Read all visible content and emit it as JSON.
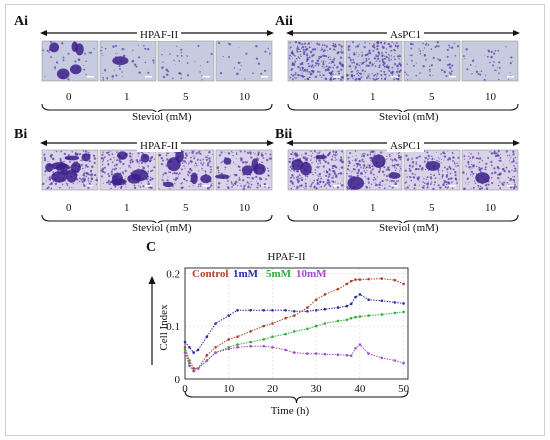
{
  "panels": {
    "Ai": {
      "label": "Ai",
      "cell_line": "HPAF-II",
      "concentrations": [
        "0",
        "1",
        "5",
        "10"
      ],
      "treatment": "Steviol (mM)"
    },
    "Aii": {
      "label": "Aii",
      "cell_line": "AsPC1",
      "concentrations": [
        "0",
        "1",
        "5",
        "10"
      ],
      "treatment": "Steviol (mM)"
    },
    "Bi": {
      "label": "Bi",
      "cell_line": "HPAF-II",
      "concentrations": [
        "0",
        "1",
        "5",
        "10"
      ],
      "treatment": "Steviol (mM)"
    },
    "Bii": {
      "label": "Bii",
      "cell_line": "AsPC1",
      "concentrations": [
        "0",
        "1",
        "5",
        "10"
      ],
      "treatment": "Steviol (mM)"
    }
  },
  "chart": {
    "panel_label": "C"
  },
  "chart_data": {
    "type": "line",
    "title": "HPAF-II",
    "xlabel": "Time (h)",
    "ylabel": "Cell Index",
    "xlim": [
      0,
      51
    ],
    "ylim": [
      0,
      0.21
    ],
    "xticks": [
      0,
      10,
      20,
      30,
      40,
      50
    ],
    "yticks": [
      0,
      0.1,
      0.2
    ],
    "grid": true,
    "legend_position": "top",
    "x": [
      0,
      1,
      2,
      3,
      5,
      7,
      10,
      12,
      15,
      18,
      20,
      23,
      25,
      28,
      30,
      32,
      35,
      37,
      38,
      39,
      40,
      42,
      45,
      48,
      50
    ],
    "series": [
      {
        "name": "Control",
        "color": "#b5412b",
        "values": [
          0.06,
          0.035,
          0.02,
          0.02,
          0.045,
          0.06,
          0.075,
          0.08,
          0.09,
          0.1,
          0.105,
          0.115,
          0.12,
          0.135,
          0.15,
          0.16,
          0.17,
          0.18,
          0.185,
          0.188,
          0.188,
          0.189,
          0.19,
          0.187,
          0.18
        ]
      },
      {
        "name": "1mM",
        "color": "#2a2fa0",
        "values": [
          0.07,
          0.06,
          0.05,
          0.055,
          0.08,
          0.105,
          0.12,
          0.13,
          0.13,
          0.13,
          0.13,
          0.13,
          0.128,
          0.128,
          0.13,
          0.132,
          0.135,
          0.138,
          0.142,
          0.155,
          0.16,
          0.15,
          0.148,
          0.145,
          0.143
        ]
      },
      {
        "name": "5mM",
        "color": "#2fae3a",
        "values": [
          0.055,
          0.03,
          0.015,
          0.02,
          0.035,
          0.05,
          0.06,
          0.065,
          0.07,
          0.075,
          0.08,
          0.085,
          0.09,
          0.095,
          0.1,
          0.105,
          0.11,
          0.112,
          0.115,
          0.117,
          0.118,
          0.12,
          0.122,
          0.125,
          0.127
        ]
      },
      {
        "name": "10mM",
        "color": "#a64bd1",
        "values": [
          0.05,
          0.025,
          0.015,
          0.02,
          0.035,
          0.05,
          0.057,
          0.06,
          0.062,
          0.062,
          0.06,
          0.055,
          0.05,
          0.048,
          0.048,
          0.047,
          0.046,
          0.045,
          0.044,
          0.058,
          0.065,
          0.048,
          0.04,
          0.035,
          0.03
        ]
      }
    ]
  },
  "colors": {
    "stain_purple": "#5a3aa8",
    "well_background": "#c7cbe0",
    "arrow": "#111111"
  }
}
